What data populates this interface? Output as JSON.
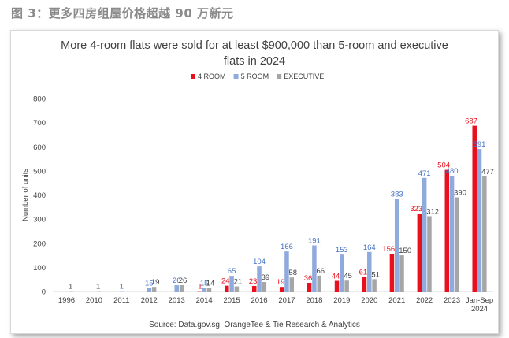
{
  "caption": "图 3：更多四房组屋价格超越 90 万新元",
  "chart_data": {
    "type": "bar",
    "title_line1": "More 4-room flats were sold for at least $900,000 than 5-room and executive",
    "title_line2": "flats in 2024",
    "ylabel": "Number of units",
    "xlabel": "",
    "ylim": [
      0,
      800
    ],
    "yticks": [
      "0",
      "100",
      "200",
      "300",
      "400",
      "500",
      "600",
      "700",
      "800"
    ],
    "categories": [
      "1996",
      "2010",
      "2011",
      "2012",
      "2013",
      "2014",
      "2015",
      "2016",
      "2017",
      "2018",
      "2019",
      "2020",
      "2021",
      "2022",
      "2023",
      "Jan-Sep 2024"
    ],
    "grid": false,
    "legend_position": "top-center",
    "source": "Source: Data.gov.sg, OrangeTee & Tie Research & Analytics",
    "series": [
      {
        "name": "4 ROOM",
        "color": "#e8101c",
        "label_color": "#e8101c",
        "values": [
          null,
          null,
          null,
          null,
          null,
          1,
          24,
          23,
          19,
          36,
          44,
          61,
          156,
          323,
          504,
          687
        ]
      },
      {
        "name": "5 ROOM",
        "color": "#8faadc",
        "label_color": "#4472c4",
        "values": [
          null,
          null,
          1,
          15,
          26,
          15,
          65,
          104,
          166,
          191,
          153,
          164,
          383,
          471,
          480,
          591
        ]
      },
      {
        "name": "EXECUTIVE",
        "color": "#a6a6a6",
        "label_color": "#404040",
        "values": [
          1,
          1,
          null,
          19,
          26,
          14,
          21,
          39,
          58,
          66,
          45,
          51,
          150,
          312,
          390,
          477
        ]
      }
    ]
  }
}
